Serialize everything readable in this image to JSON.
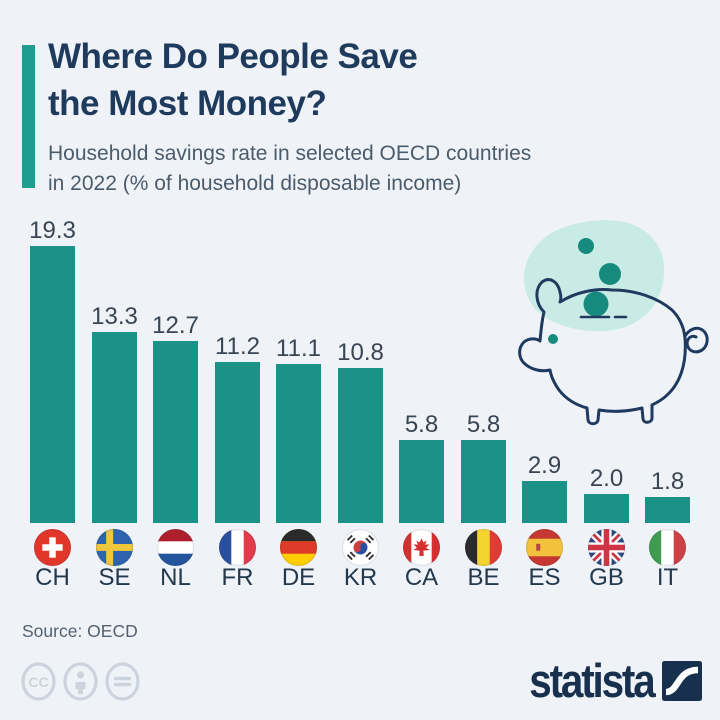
{
  "header": {
    "title_line1": "Where Do People Save",
    "title_line2": "the Most Money?",
    "subtitle_line1": "Household savings rate in selected OECD countries",
    "subtitle_line2": "in 2022 (% of household disposable income)"
  },
  "chart_data": {
    "type": "bar",
    "title": "Where Do People Save the Most Money?",
    "subtitle": "Household savings rate in selected OECD countries in 2022 (% of household disposable income)",
    "categories": [
      "CH",
      "SE",
      "NL",
      "FR",
      "DE",
      "KR",
      "CA",
      "BE",
      "ES",
      "GB",
      "IT"
    ],
    "values": [
      19.3,
      13.3,
      12.7,
      11.2,
      11.1,
      10.8,
      5.8,
      5.8,
      2.9,
      2.0,
      1.8
    ],
    "value_labels": [
      "19.3",
      "13.3",
      "12.7",
      "11.2",
      "11.1",
      "10.8",
      "5.8",
      "5.8",
      "2.9",
      "2.0",
      "1.8"
    ],
    "flags": [
      "switzerland",
      "sweden",
      "netherlands",
      "france",
      "germany",
      "south-korea",
      "canada",
      "belgium",
      "spain",
      "united-kingdom",
      "italy"
    ],
    "xlabel": "",
    "ylabel": "",
    "ylim": [
      0,
      20
    ],
    "grid": false,
    "legend": false,
    "bar_color": "#1a9287"
  },
  "illustration": {
    "name": "piggy-bank-with-coins"
  },
  "footer": {
    "source": "Source: OECD",
    "license_icons": [
      "cc-icon",
      "attribution-person-icon",
      "equals-icon"
    ],
    "brand": "statista"
  },
  "colors": {
    "background": "#eff3f8",
    "accent": "#1f9e90",
    "bar": "#1a9287",
    "title": "#1e3a5c",
    "subtitle": "#4a5b6c",
    "coin": "#178a7e",
    "blob": "#c9ebe5",
    "outline": "#1e3a5f",
    "brand_navy": "#16304d"
  }
}
